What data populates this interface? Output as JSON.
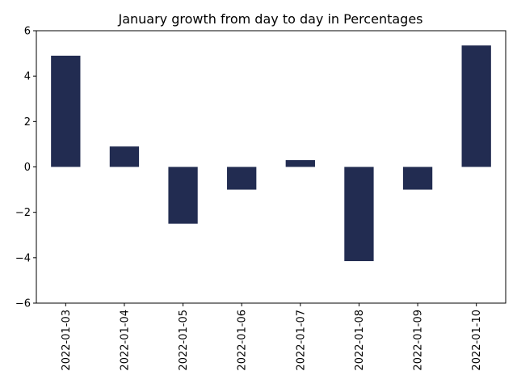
{
  "chart_data": {
    "type": "bar",
    "title": "January growth from day to day in Percentages",
    "xlabel": "",
    "ylabel": "",
    "categories": [
      "2022-01-03",
      "2022-01-04",
      "2022-01-05",
      "2022-01-06",
      "2022-01-07",
      "2022-01-08",
      "2022-01-09",
      "2022-01-10"
    ],
    "values": [
      4.9,
      0.9,
      -2.5,
      -1.0,
      0.3,
      -4.15,
      -1.0,
      5.35
    ],
    "ylim": [
      -6,
      6
    ],
    "yticks": [
      "−6",
      "−4",
      "−2",
      "0",
      "2",
      "4",
      "6"
    ],
    "ytick_values": [
      -6,
      -4,
      -2,
      0,
      2,
      4,
      6
    ],
    "grid": false,
    "bar_color": "#222c51"
  }
}
